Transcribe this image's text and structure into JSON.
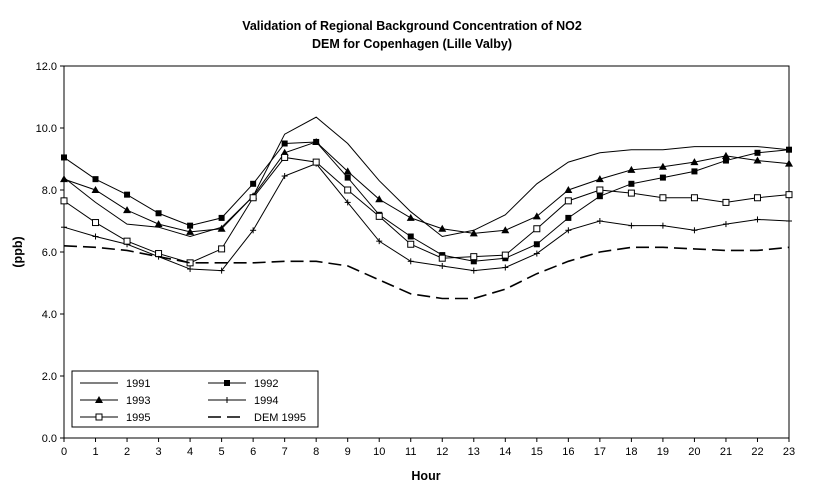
{
  "chart_data": {
    "type": "line",
    "title": "Validation of Regional Background Concentration of NO2",
    "subtitle": "DEM for Copenhagen (Lille Valby)",
    "xlabel": "Hour",
    "ylabel": "(ppb)",
    "x": [
      0,
      1,
      2,
      3,
      4,
      5,
      6,
      7,
      8,
      9,
      10,
      11,
      12,
      13,
      14,
      15,
      16,
      17,
      18,
      19,
      20,
      21,
      22,
      23
    ],
    "xlim": [
      0,
      23
    ],
    "ylim": [
      0,
      12
    ],
    "yticks": [
      "0.0",
      "2.0",
      "4.0",
      "6.0",
      "8.0",
      "10.0",
      "12.0"
    ],
    "grid": false,
    "legend_position": "bottom-left",
    "series": [
      {
        "name": "1991",
        "marker": "none",
        "dash": "solid",
        "values": [
          8.4,
          7.6,
          6.9,
          6.8,
          6.5,
          6.8,
          7.8,
          9.8,
          10.35,
          9.5,
          8.3,
          7.3,
          6.5,
          6.7,
          7.2,
          8.2,
          8.9,
          9.2,
          9.3,
          9.3,
          9.4,
          9.4,
          9.4,
          9.3
        ]
      },
      {
        "name": "1992",
        "marker": "filled-square",
        "dash": "solid",
        "values": [
          9.05,
          8.35,
          7.85,
          7.25,
          6.85,
          7.1,
          8.2,
          9.5,
          9.55,
          8.4,
          7.2,
          6.5,
          5.9,
          5.7,
          5.8,
          6.25,
          7.1,
          7.8,
          8.2,
          8.4,
          8.6,
          8.95,
          9.2,
          9.3
        ]
      },
      {
        "name": "1993",
        "marker": "filled-triangle",
        "dash": "solid",
        "values": [
          8.35,
          8.0,
          7.35,
          6.9,
          6.65,
          6.75,
          7.8,
          9.2,
          9.55,
          8.6,
          7.7,
          7.1,
          6.75,
          6.6,
          6.7,
          7.15,
          8.0,
          8.35,
          8.65,
          8.75,
          8.9,
          9.1,
          8.95,
          8.85
        ]
      },
      {
        "name": "1994",
        "marker": "plus",
        "dash": "solid",
        "values": [
          6.8,
          6.5,
          6.25,
          5.85,
          5.45,
          5.4,
          6.7,
          8.45,
          8.85,
          7.6,
          6.35,
          5.7,
          5.55,
          5.4,
          5.5,
          5.95,
          6.7,
          7.0,
          6.85,
          6.85,
          6.7,
          6.9,
          7.05,
          7.0
        ]
      },
      {
        "name": "1995",
        "marker": "open-square",
        "dash": "solid",
        "values": [
          7.65,
          6.95,
          6.35,
          5.95,
          5.65,
          6.1,
          7.75,
          9.05,
          8.9,
          8.0,
          7.15,
          6.25,
          5.8,
          5.85,
          5.9,
          6.75,
          7.65,
          8.0,
          7.9,
          7.75,
          7.75,
          7.6,
          7.75,
          7.85
        ]
      },
      {
        "name": "DEM 1995",
        "marker": "none",
        "dash": "dashed",
        "values": [
          6.2,
          6.15,
          6.05,
          5.85,
          5.65,
          5.65,
          5.65,
          5.7,
          5.7,
          5.55,
          5.1,
          4.65,
          4.5,
          4.5,
          4.8,
          5.3,
          5.7,
          6.0,
          6.15,
          6.15,
          6.1,
          6.05,
          6.05,
          6.15
        ]
      }
    ]
  }
}
